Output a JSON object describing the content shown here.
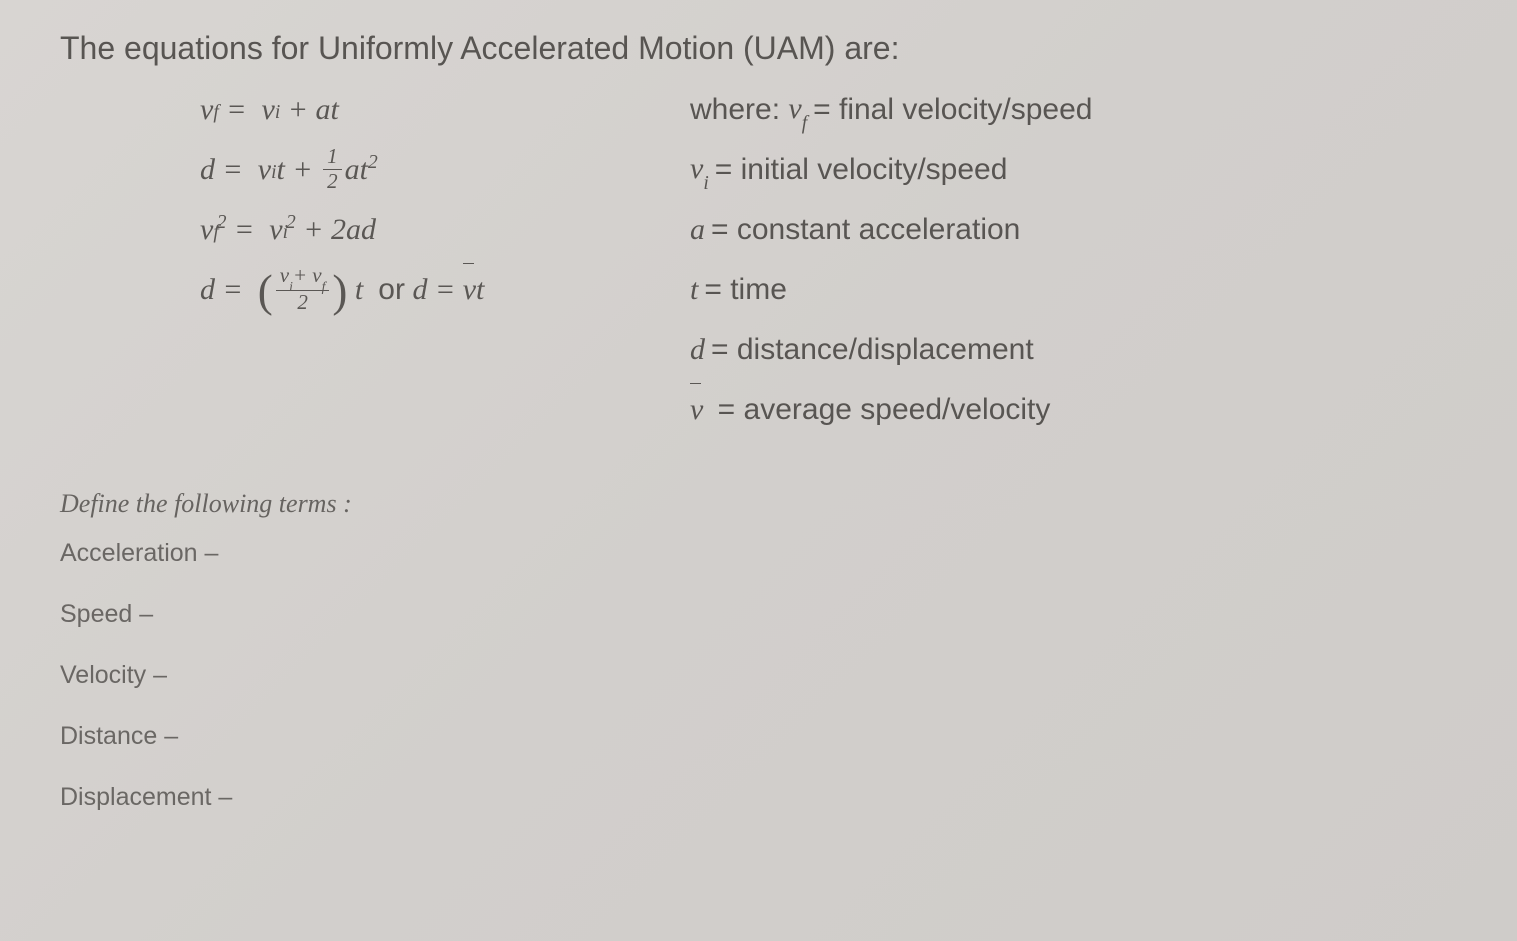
{
  "document": {
    "title": "The equations for Uniformly Accelerated Motion (UAM) are:",
    "background_color": "#d4d1ce",
    "text_color": "#585552",
    "title_fontsize": 32,
    "equation_fontsize": 30,
    "body_fontsize": 26
  },
  "equations": {
    "eq1": {
      "lhs_var": "v",
      "lhs_sub": "f",
      "rhs": "v_i + at",
      "display_full": "v_f = v_i + at"
    },
    "eq2": {
      "lhs_var": "d",
      "rhs": "v_i t + (1/2) a t^2",
      "frac_num": "1",
      "frac_den": "2",
      "display_full": "d = v_i t + ½ a t²"
    },
    "eq3": {
      "lhs_var": "v",
      "lhs_sub": "f",
      "lhs_sup": "2",
      "rhs": "v_i^2 + 2ad",
      "display_full": "v_f² = v_i² + 2ad"
    },
    "eq4": {
      "lhs_var": "d",
      "frac_num": "v_i + v_f",
      "frac_den": "2",
      "or_text": "or",
      "alt_rhs": "v̄t",
      "display_full": "d = ((v_i + v_f)/2) t  or  d = v̄t"
    }
  },
  "definitions": {
    "where_label": "where:",
    "items": [
      {
        "var": "v",
        "sub": "f",
        "desc": "= final velocity/speed"
      },
      {
        "var": "v",
        "sub": "i",
        "desc": "= initial velocity/speed"
      },
      {
        "var": "a",
        "sub": "",
        "desc": "= constant acceleration"
      },
      {
        "var": "t",
        "sub": "",
        "desc": "= time"
      },
      {
        "var": "d",
        "sub": "",
        "desc": "= distance/displacement"
      },
      {
        "var": "v̄",
        "sub": "",
        "desc": "= average speed/velocity"
      }
    ]
  },
  "exercise": {
    "heading": "Define the following terms :",
    "terms": [
      "Acceleration –",
      "Speed –",
      "Velocity –",
      "Distance –",
      "Displacement –"
    ]
  }
}
